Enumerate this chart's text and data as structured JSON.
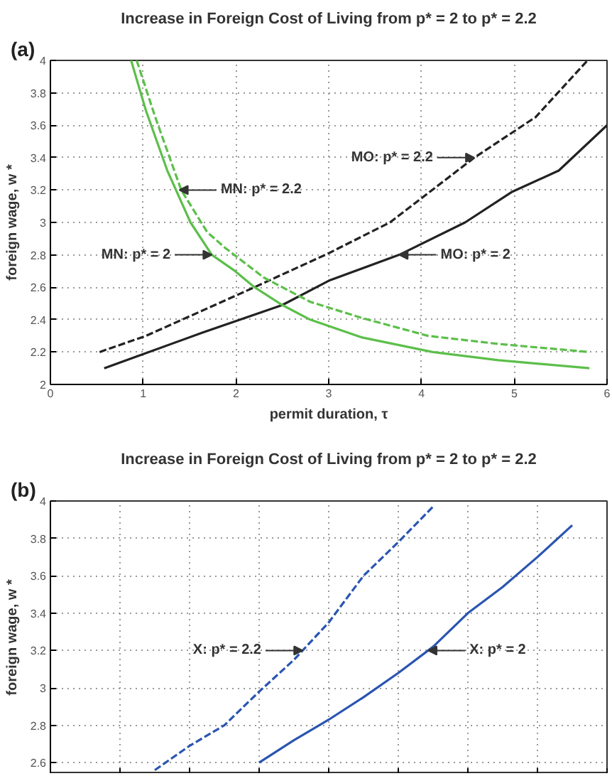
{
  "chart_data": [
    {
      "type": "line",
      "title": "Increase in Foreign Cost of Living from p* = 2 to p* = 2.2",
      "xlabel": "permit duration, τ",
      "ylabel": "foreign wage, w *",
      "annotations": [
        "(a)",
        {
          "text": "MO: p* = 2.2",
          "x": 4.57,
          "y": 3.4
        },
        {
          "text": "MN: p* = 2.2",
          "x": 1.39,
          "y": 3.2
        },
        {
          "text": "MN: p* = 2",
          "x": 1.74,
          "y": 2.8
        },
        {
          "text": "MO: p* = 2",
          "x": 3.76,
          "y": 2.8
        }
      ],
      "xlim": [
        0,
        6
      ],
      "ylim": [
        2,
        4
      ],
      "xticks": [
        0,
        1,
        2,
        3,
        4,
        5,
        6
      ],
      "yticks": [
        2,
        2.2,
        2.4,
        2.6,
        2.8,
        3,
        3.2,
        3.4,
        3.6,
        3.8,
        4
      ],
      "grid": true,
      "series": [
        {
          "color": "#222222",
          "line_style": "solid",
          "x": [
            0.58,
            1.64,
            2.5,
            3.0,
            3.76,
            4.47,
            4.98,
            5.48,
            6.0
          ],
          "values": [
            2.1,
            2.32,
            2.49,
            2.64,
            2.8,
            3.0,
            3.19,
            3.32,
            3.6
          ]
        },
        {
          "color": "#222222",
          "line_style": "dashed",
          "x": [
            0.53,
            1.03,
            2.2,
            3.0,
            3.66,
            4.57,
            5.23,
            5.79
          ],
          "values": [
            2.2,
            2.3,
            2.6,
            2.81,
            3.0,
            3.4,
            3.65,
            4.0
          ]
        },
        {
          "color": "#5cbf4a",
          "line_style": "solid",
          "x": [
            0.87,
            1.03,
            1.26,
            1.51,
            1.74,
            1.99,
            2.2,
            2.5,
            2.8,
            3.36,
            4.12,
            4.83,
            5.81
          ],
          "values": [
            4.0,
            3.69,
            3.32,
            3.0,
            2.8,
            2.7,
            2.6,
            2.49,
            2.4,
            2.29,
            2.2,
            2.15,
            2.1
          ]
        },
        {
          "color": "#5cbf4a",
          "line_style": "dashed",
          "x": [
            0.93,
            1.13,
            1.41,
            1.69,
            1.89,
            2.3,
            2.8,
            3.36,
            4.07,
            4.83,
            5.81
          ],
          "values": [
            4.0,
            3.65,
            3.2,
            2.94,
            2.84,
            2.66,
            2.51,
            2.41,
            2.3,
            2.25,
            2.2
          ]
        }
      ]
    },
    {
      "type": "line",
      "title": "Increase in Foreign Cost of Living from p* = 2 to p* = 2.2",
      "ylabel": "foreign wage, w *",
      "annotations": [
        "(b)",
        "X: p* = 2.2",
        "X: p* = 2"
      ],
      "categories": [
        null,
        null,
        null,
        null,
        null,
        null,
        null,
        null,
        null,
        null,
        null,
        null,
        null,
        null,
        null,
        null,
        null
      ],
      "ylim": [
        2.54,
        4
      ],
      "yticks": [
        2.6,
        2.8,
        3,
        3.2,
        3.4,
        3.6,
        3.8,
        4
      ],
      "grid": true,
      "tick_labels": "y",
      "series": [
        {
          "color": "#2a55b0",
          "line_style": "dashed",
          "values": [
            null,
            null,
            null,
            2.56,
            2.69,
            2.8,
            2.98,
            3.15,
            3.35,
            3.6,
            3.78,
            3.97,
            null,
            null,
            null,
            null,
            null
          ]
        },
        {
          "color": "#2a55b0",
          "line_style": "solid",
          "values": [
            null,
            null,
            null,
            null,
            null,
            null,
            2.6,
            2.72,
            2.83,
            2.95,
            3.08,
            3.22,
            3.4,
            3.54,
            3.7,
            3.87,
            null
          ]
        }
      ]
    }
  ]
}
